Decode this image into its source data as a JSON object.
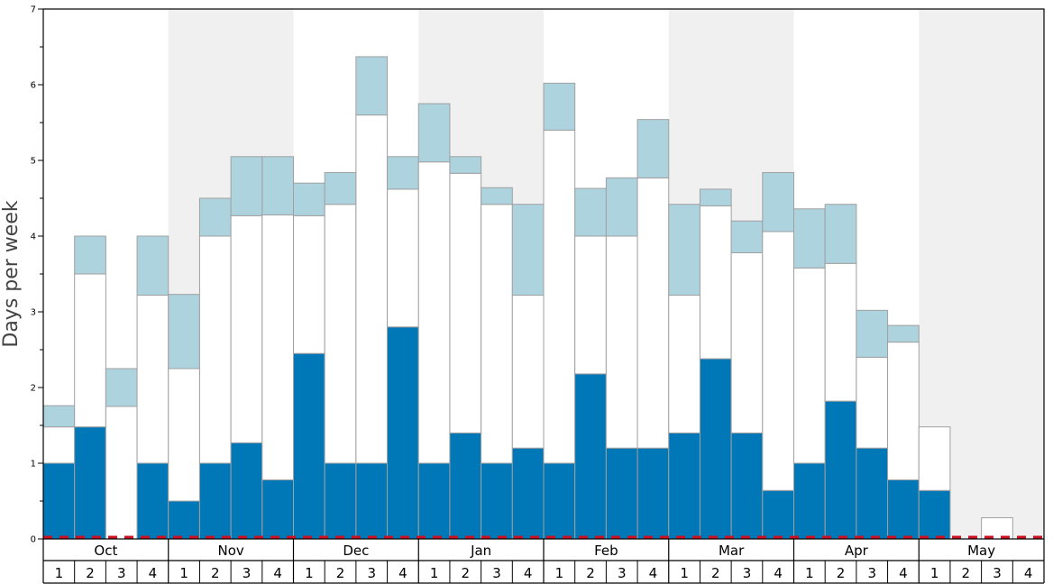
{
  "chart_data": {
    "type": "bar",
    "stacked": true,
    "ylabel": "Days per week",
    "ylim": [
      0,
      7
    ],
    "yticks": [
      "0",
      "1",
      "2",
      "3",
      "4",
      "5",
      "6",
      "7"
    ],
    "months": [
      "Oct",
      "Nov",
      "Dec",
      "Jan",
      "Feb",
      "Mar",
      "Apr",
      "May"
    ],
    "weeks": [
      "1",
      "2",
      "3",
      "4"
    ],
    "shaded_months": [
      "Nov",
      "Jan",
      "Mar",
      "May"
    ],
    "colors": {
      "bottom": "#0077b6",
      "middle": "#ffffff",
      "top": "#add3df",
      "baseline": "#cc1122",
      "shading": "#f0f0f0",
      "bar_border": "#a0a0a0"
    },
    "series": [
      {
        "values": [
          1.0,
          1.48,
          0,
          1.0,
          0.5,
          1.0,
          1.27,
          0.78,
          2.45,
          1.0,
          1.0,
          2.8,
          1.0,
          1.4,
          1.0,
          1.2,
          1.0,
          2.18,
          1.2,
          1.2,
          1.4,
          2.38,
          1.4,
          0.64,
          1.0,
          1.82,
          1.2,
          0.78,
          0.64,
          0,
          0,
          0
        ]
      },
      {
        "values": [
          0.48,
          2.02,
          1.75,
          2.22,
          1.75,
          3.0,
          3.0,
          3.5,
          1.82,
          3.42,
          4.6,
          1.82,
          3.98,
          3.43,
          3.42,
          2.02,
          4.4,
          1.82,
          2.8,
          3.57,
          1.82,
          2.02,
          2.38,
          3.42,
          2.58,
          1.82,
          1.2,
          1.82,
          0.84,
          0,
          0.28,
          0
        ]
      },
      {
        "values": [
          0.28,
          0.5,
          0.5,
          0.78,
          0.98,
          0.5,
          0.78,
          0.77,
          0.43,
          0.42,
          0.77,
          0.43,
          0.77,
          0.22,
          0.22,
          1.2,
          0.62,
          0.63,
          0.77,
          0.77,
          1.2,
          0.22,
          0.42,
          0.78,
          0.78,
          0.78,
          0.62,
          0.22,
          0,
          0,
          0,
          0
        ]
      }
    ]
  }
}
